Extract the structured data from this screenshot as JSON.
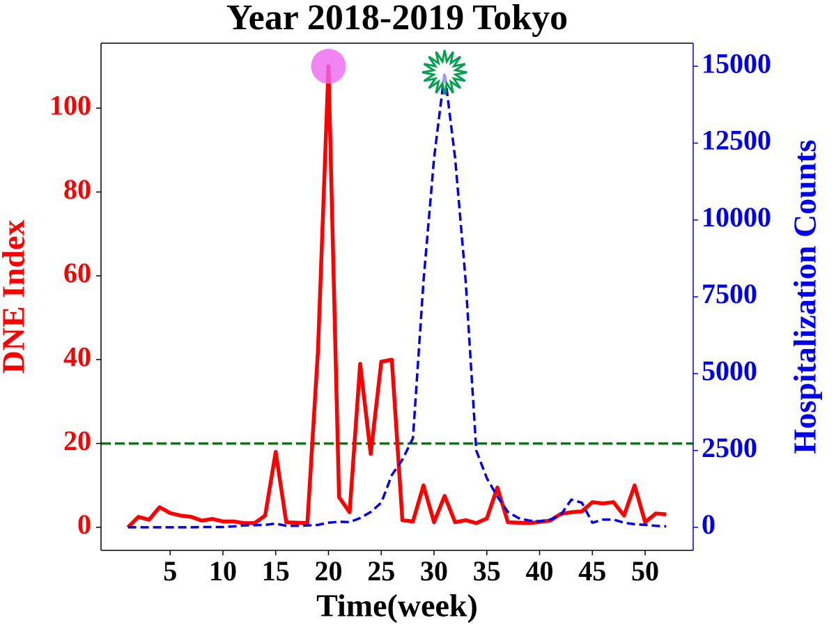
{
  "chart_data": {
    "type": "line",
    "title": "Year 2018-2019 Tokyo",
    "x_label": "Time(week)",
    "y_label": "DNE  Index",
    "y2_label": "Hospitalization Counts",
    "x": [
      1,
      2,
      3,
      4,
      5,
      6,
      7,
      8,
      9,
      10,
      11,
      12,
      13,
      14,
      15,
      16,
      17,
      18,
      19,
      20,
      21,
      22,
      23,
      24,
      25,
      26,
      27,
      28,
      29,
      30,
      31,
      32,
      33,
      34,
      35,
      36,
      37,
      38,
      39,
      40,
      41,
      42,
      43,
      44,
      45,
      46,
      47,
      48,
      49,
      50,
      51,
      52
    ],
    "series": [
      {
        "name": "DNE Index",
        "color": "#ff0000",
        "axis": "y",
        "dash": "solid",
        "values": [
          0,
          2.5,
          1.8,
          4.8,
          3.4,
          2.8,
          2.5,
          1.6,
          2,
          1.4,
          1.4,
          1,
          1,
          2.8,
          18,
          1.2,
          1.1,
          1,
          42,
          110,
          7.2,
          3.6,
          39,
          17.5,
          39.5,
          40,
          1.7,
          1.4,
          10,
          1.2,
          7.5,
          1.2,
          1.7,
          1,
          2.1,
          9.5,
          1.2,
          1.1,
          1,
          1.3,
          1.6,
          3.2,
          3.6,
          3.8,
          6,
          5.7,
          6,
          2.8,
          10,
          1.2,
          3.3,
          3.1
        ]
      },
      {
        "name": "Hospitalization Counts",
        "color": "#0000ee",
        "axis": "y2",
        "dash": "dashed",
        "values": [
          0,
          0,
          0,
          0,
          0,
          0,
          0,
          10,
          10,
          10,
          30,
          60,
          70,
          80,
          120,
          50,
          50,
          60,
          80,
          150,
          180,
          170,
          300,
          500,
          800,
          1700,
          2200,
          2900,
          8000,
          12000,
          14800,
          12000,
          8000,
          2500,
          1600,
          1000,
          500,
          300,
          220,
          200,
          250,
          400,
          900,
          800,
          150,
          250,
          250,
          150,
          100,
          80,
          50,
          30
        ]
      }
    ],
    "threshold": {
      "value": 20,
      "axis": "y",
      "color": "#008000"
    },
    "markers": [
      {
        "x": 20,
        "y": 110,
        "axis": "y",
        "shape": "circle",
        "color": "#ee66ee"
      },
      {
        "x": 31,
        "y": 14800,
        "axis": "y2",
        "shape": "star",
        "color": "#00a050"
      }
    ],
    "xlim": [
      -1.55,
      54.55
    ],
    "xticks": [
      5,
      10,
      15,
      20,
      25,
      30,
      35,
      40,
      45,
      50
    ],
    "ylim": [
      -5.5,
      115.5
    ],
    "yticks": [
      0,
      20,
      40,
      60,
      80,
      100
    ],
    "y2lim": [
      -750,
      15750
    ],
    "y2ticks": [
      0,
      2500,
      5000,
      7500,
      10000,
      12500,
      15000
    ],
    "y_color": "#ff0000",
    "y2_color": "#0000ee"
  }
}
